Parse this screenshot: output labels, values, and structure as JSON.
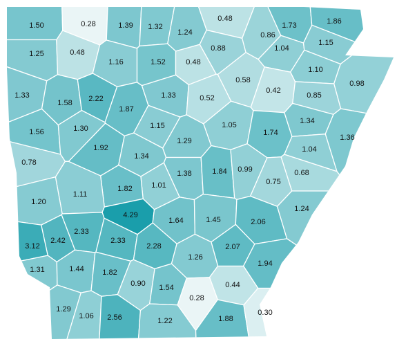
{
  "chart_data": {
    "type": "choropleth",
    "values": [
      1.5,
      0.28,
      1.39,
      1.32,
      1.24,
      0.48,
      0.86,
      1.73,
      1.86,
      1.25,
      0.48,
      0.88,
      1.04,
      1.15,
      1.16,
      1.52,
      0.48,
      0.58,
      0.42,
      1.1,
      0.98,
      1.33,
      1.58,
      2.22,
      1.87,
      1.33,
      0.52,
      0.85,
      1.56,
      1.3,
      1.15,
      1.05,
      1.74,
      1.34,
      1.36,
      1.29,
      1.92,
      0.78,
      1.34,
      1.04,
      1.38,
      1.84,
      0.99,
      0.68,
      0.75,
      1.01,
      1.82,
      1.11,
      1.2,
      4.29,
      1.64,
      1.45,
      2.06,
      1.24,
      2.33,
      2.42,
      3.12,
      2.33,
      2.28,
      2.07,
      1.26,
      1.94,
      1.31,
      1.44,
      1.82,
      0.9,
      1.54,
      0.44,
      0.28,
      1.29,
      1.06,
      2.56,
      1.22,
      1.88,
      0.3
    ],
    "value_labels": [
      "1.50",
      "0.28",
      "1.39",
      "1.32",
      "1.24",
      "0.48",
      "0.86",
      "1.73",
      "1.86",
      "1.25",
      "0.48",
      "0.88",
      "1.04",
      "1.15",
      "1.16",
      "1.52",
      "0.48",
      "0.58",
      "0.42",
      "1.10",
      "0.98",
      "1.33",
      "1.58",
      "2.22",
      "1.87",
      "1.33",
      "0.52",
      "0.85",
      "1.56",
      "1.30",
      "1.15",
      "1.05",
      "1.74",
      "1.34",
      "1.36",
      "1.29",
      "1.92",
      "0.78",
      "1.34",
      "1.04",
      "1.38",
      "1.84",
      "0.99",
      "0.68",
      "0.75",
      "1.01",
      "1.82",
      "1.11",
      "1.20",
      "4.29",
      "1.64",
      "1.45",
      "2.06",
      "1.24",
      "2.33",
      "2.42",
      "3.12",
      "2.33",
      "2.28",
      "2.07",
      "1.26",
      "1.94",
      "1.31",
      "1.44",
      "1.82",
      "0.90",
      "1.54",
      "0.44",
      "0.28",
      "1.29",
      "1.06",
      "2.56",
      "1.22",
      "1.88",
      "0.30"
    ],
    "color_range": [
      "#eaf5f6",
      "#1a9eab"
    ]
  }
}
